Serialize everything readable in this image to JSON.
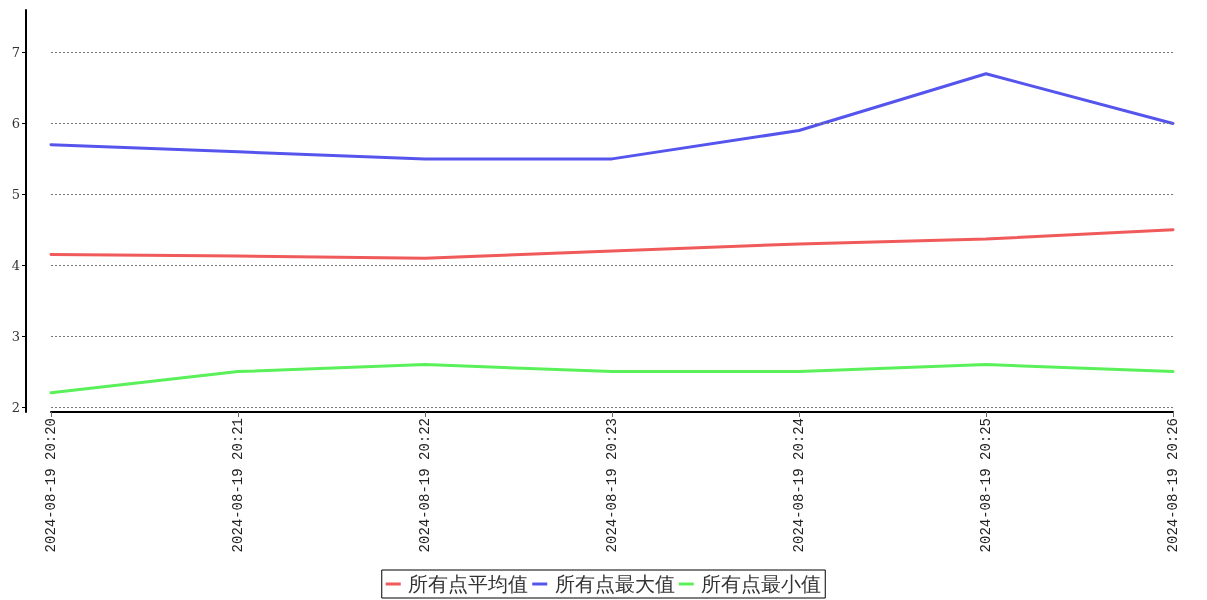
{
  "chart_data": {
    "type": "line",
    "categories": [
      "2024-08-19 20:20",
      "2024-08-19 20:21",
      "2024-08-19 20:22",
      "2024-08-19 20:23",
      "2024-08-19 20:24",
      "2024-08-19 20:25",
      "2024-08-19 20:26"
    ],
    "series": [
      {
        "name": "所有点平均值",
        "color": "#f05a5a",
        "values": [
          4.15,
          4.13,
          4.1,
          4.2,
          4.3,
          4.37,
          4.5
        ]
      },
      {
        "name": "所有点最大值",
        "color": "#5555ee",
        "values": [
          5.7,
          5.6,
          5.5,
          5.5,
          5.9,
          6.7,
          6.0
        ]
      },
      {
        "name": "所有点最小值",
        "color": "#5af05a",
        "values": [
          2.2,
          2.5,
          2.6,
          2.5,
          2.5,
          2.6,
          2.5
        ]
      }
    ],
    "ylim": [
      1.93,
      7.6
    ],
    "yticks": [
      2,
      3,
      4,
      5,
      6,
      7
    ],
    "grid": "y",
    "legend": "bottom",
    "marker": "none",
    "line_style": "solid"
  }
}
